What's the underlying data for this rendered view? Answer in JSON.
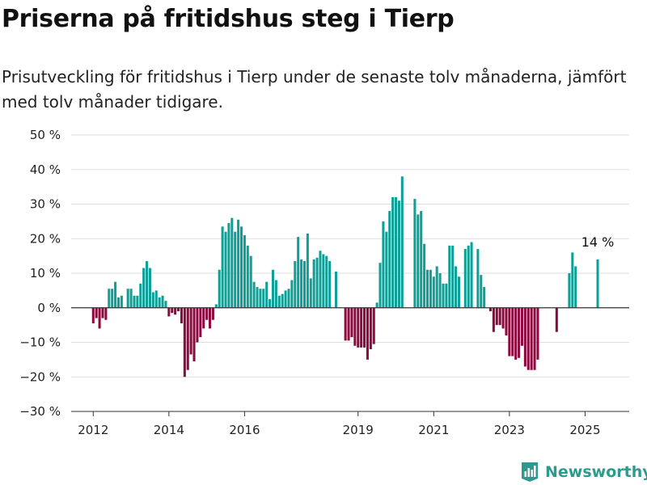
{
  "header": {
    "title": "Priserna på fritidshus steg i Tierp",
    "subtitle": "Prisutveckling för fritidshus i Tierp under de senaste tolv månaderna, jämfört med tolv månader tidigare."
  },
  "brand": {
    "name": "Newsworthy",
    "icon": "bar-chart-logo-icon",
    "color": "#2e9a8d"
  },
  "chart_data": {
    "type": "bar",
    "title": "",
    "xlabel": "",
    "ylabel": "",
    "ylim": [
      -30,
      50
    ],
    "yticks": [
      50,
      40,
      30,
      20,
      10,
      0,
      -10,
      -20,
      -30
    ],
    "ytick_labels": [
      "50 %",
      "40 %",
      "30 %",
      "20 %",
      "10 %",
      "0 %",
      "−10 %",
      "−20 %",
      "−30 %"
    ],
    "xticks": [
      {
        "date": "2012-01",
        "label": "2012"
      },
      {
        "date": "2014-01",
        "label": "2014"
      },
      {
        "date": "2016-01",
        "label": "2016"
      },
      {
        "date": "2019-01",
        "label": "2019"
      },
      {
        "date": "2021-01",
        "label": "2021"
      },
      {
        "date": "2023-01",
        "label": "2023"
      },
      {
        "date": "2025-01",
        "label": "2025"
      }
    ],
    "x_range": [
      "2011-06",
      "2026-03"
    ],
    "grid": true,
    "colors": {
      "positive": "#0e9f96",
      "negative": "#8c0a3f"
    },
    "annotation": {
      "date": "2025-05",
      "text": "14 %"
    },
    "series": [
      {
        "x": [
          "2012-01",
          "2012-02",
          "2012-03",
          "2012-04",
          "2012-05",
          "2012-06",
          "2012-07",
          "2012-08",
          "2012-09",
          "2012-10",
          "2012-11",
          "2012-12",
          "2013-01",
          "2013-02",
          "2013-03",
          "2013-04",
          "2013-05",
          "2013-06",
          "2013-07",
          "2013-08",
          "2013-09",
          "2013-10",
          "2013-11",
          "2013-12",
          "2014-01",
          "2014-02",
          "2014-03",
          "2014-04",
          "2014-05",
          "2014-06",
          "2014-07",
          "2014-08",
          "2014-09",
          "2014-10",
          "2014-11",
          "2014-12",
          "2015-01",
          "2015-02",
          "2015-03",
          "2015-04",
          "2015-05",
          "2015-06",
          "2015-07",
          "2015-08",
          "2015-09",
          "2015-10",
          "2015-11",
          "2015-12",
          "2016-01",
          "2016-02",
          "2016-03",
          "2016-04",
          "2016-05",
          "2016-06",
          "2016-07",
          "2016-08",
          "2016-09",
          "2016-10",
          "2016-11",
          "2016-12",
          "2017-01",
          "2017-02",
          "2017-03",
          "2017-04",
          "2017-05",
          "2017-06",
          "2017-07",
          "2017-08",
          "2017-09",
          "2017-10",
          "2017-11",
          "2017-12",
          "2018-01",
          "2018-02",
          "2018-03",
          "2018-04",
          "2018-05",
          "2018-06",
          "2018-07",
          "2018-08",
          "2018-09",
          "2018-10",
          "2018-11",
          "2018-12",
          "2019-01",
          "2019-02",
          "2019-03",
          "2019-04",
          "2019-05",
          "2019-06",
          "2019-07",
          "2019-08",
          "2019-09",
          "2019-10",
          "2019-11",
          "2019-12",
          "2020-01",
          "2020-02",
          "2020-03",
          "2020-04",
          "2020-05",
          "2020-06",
          "2020-07",
          "2020-08",
          "2020-09",
          "2020-10",
          "2020-11",
          "2020-12",
          "2021-01",
          "2021-02",
          "2021-03",
          "2021-04",
          "2021-05",
          "2021-06",
          "2021-07",
          "2021-08",
          "2021-09",
          "2021-10",
          "2021-11",
          "2021-12",
          "2022-01",
          "2022-02",
          "2022-03",
          "2022-04",
          "2022-05",
          "2022-06",
          "2022-07",
          "2022-08",
          "2022-09",
          "2022-10",
          "2022-11",
          "2022-12",
          "2023-01",
          "2023-02",
          "2023-03",
          "2023-04",
          "2023-05",
          "2023-06",
          "2023-07",
          "2023-08",
          "2023-09",
          "2023-10",
          "2023-11",
          "2023-12",
          "2024-01",
          "2024-02",
          "2024-03",
          "2024-04",
          "2024-05",
          "2024-06",
          "2024-07",
          "2024-08",
          "2024-09",
          "2024-10",
          "2024-11",
          "2024-12",
          "2025-01",
          "2025-02",
          "2025-03",
          "2025-04",
          "2025-05"
        ],
        "values": [
          -4.5,
          -3,
          -6,
          -3,
          -3.5,
          5.5,
          5.5,
          7.5,
          3,
          3.5,
          null,
          5.5,
          5.5,
          3.5,
          3.5,
          7,
          11.5,
          13.5,
          11.5,
          4.5,
          5,
          3,
          3.5,
          2,
          -2.5,
          -1.5,
          -2,
          -1,
          -4.5,
          -20,
          -18,
          -13.5,
          -15.5,
          -10,
          -8.5,
          -6,
          -3.5,
          -6,
          -3.5,
          1,
          11,
          23.5,
          22,
          24.5,
          26,
          22,
          25.5,
          23.5,
          21,
          18,
          15,
          7.5,
          6,
          5.5,
          5.5,
          7.5,
          2.5,
          11,
          8,
          3.5,
          4,
          5,
          5.5,
          8,
          13.5,
          20.5,
          14,
          13.5,
          21.5,
          8.5,
          14,
          14.5,
          16.5,
          15.5,
          15,
          13.5,
          null,
          10.5,
          null,
          null,
          -9.5,
          -9.5,
          -8.5,
          -11,
          -11.5,
          -11.5,
          -11.5,
          -15,
          -12,
          -10.5,
          1.5,
          13,
          25,
          22,
          28,
          32,
          32,
          31,
          38,
          null,
          null,
          null,
          31.5,
          27,
          28,
          18.5,
          11,
          11,
          9,
          12,
          10,
          7,
          7,
          18,
          18,
          12,
          9,
          null,
          17,
          18,
          19,
          null,
          17,
          9.5,
          6,
          null,
          -1,
          -7,
          -5,
          -5,
          -6,
          -8,
          -14,
          -14,
          -15,
          -14.5,
          -11,
          -17,
          -18,
          -18,
          -18,
          -15,
          null,
          null,
          null,
          null,
          null,
          -7,
          null,
          null,
          null,
          10,
          16,
          12,
          null,
          null,
          null,
          null,
          null,
          null,
          14
        ]
      }
    ]
  }
}
